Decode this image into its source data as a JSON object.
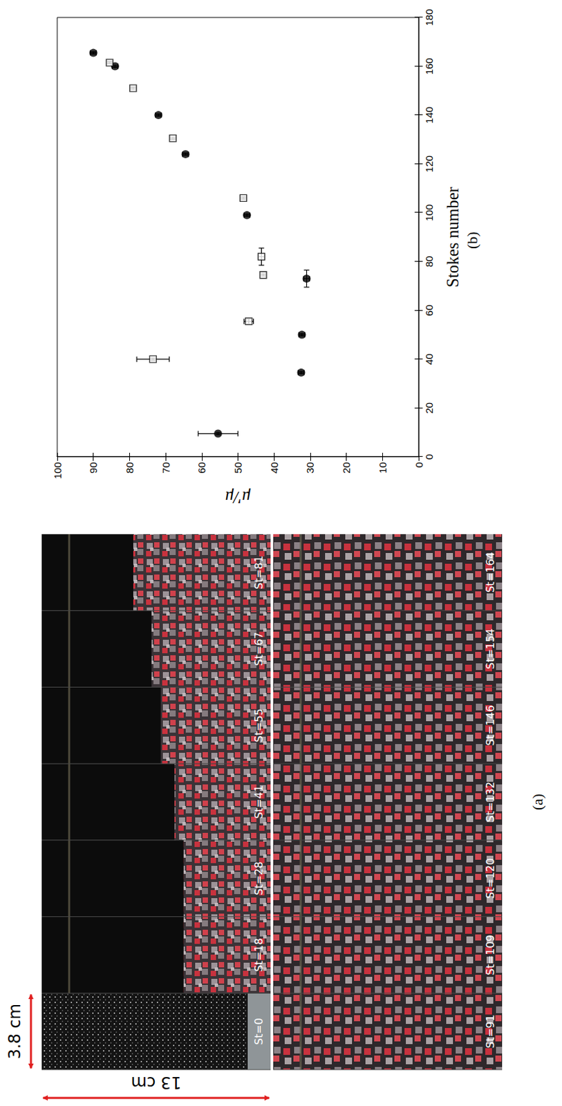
{
  "chart_data": {
    "type": "scatter",
    "xlabel": "Stokes number",
    "ylabel": "μ'/μ",
    "panel_label": "(b)",
    "xlim": [
      0,
      180
    ],
    "xticks": [
      0,
      20,
      40,
      60,
      80,
      100,
      120,
      140,
      160,
      180
    ],
    "ylim": [
      0,
      100
    ],
    "yticks": [
      0,
      10,
      20,
      30,
      40,
      50,
      60,
      70,
      80,
      90,
      100
    ],
    "grid": false,
    "series": [
      {
        "color": "#000000",
        "marker": "circle",
        "x": [
          9.5,
          34.5,
          50,
          73,
          99,
          124,
          140,
          160,
          165.5
        ],
        "values": [
          55.5,
          32.5,
          32.3,
          31,
          47.5,
          64.5,
          72,
          84,
          90
        ],
        "xerr": [
          0.5,
          0.5,
          0.5,
          3.5,
          0.5,
          0.5,
          0.5,
          0.5,
          0.5
        ],
        "yerr": [
          5.5,
          0.8,
          0.8,
          0.8,
          0.8,
          0.8,
          0.8,
          0.8,
          0.8
        ]
      },
      {
        "color": "#000000",
        "marker": "open_square",
        "x": [
          40,
          55.5,
          74.5,
          82,
          106,
          130.5,
          151,
          161.5
        ],
        "values": [
          73.5,
          47,
          43,
          43.5,
          48.5,
          68,
          79,
          85.5
        ],
        "xerr": [
          0.5,
          1,
          0.5,
          3.5,
          0.5,
          0.5,
          0.5,
          0.5
        ],
        "yerr": [
          4.5,
          1.3,
          0.8,
          0.8,
          0.8,
          0.8,
          0.8,
          0.8
        ]
      }
    ]
  },
  "panel_a": {
    "label": "(a)",
    "width_label": "3.8 cm",
    "height_label": "13 cm",
    "rows": [
      [
        "St=0",
        "St=18",
        "St=28",
        "St=41",
        "St=55",
        "St=67",
        "St=81"
      ],
      [
        "St=91",
        "St=109",
        "St=120",
        "St=132",
        "St=146",
        "St=154",
        "St=164"
      ]
    ]
  }
}
